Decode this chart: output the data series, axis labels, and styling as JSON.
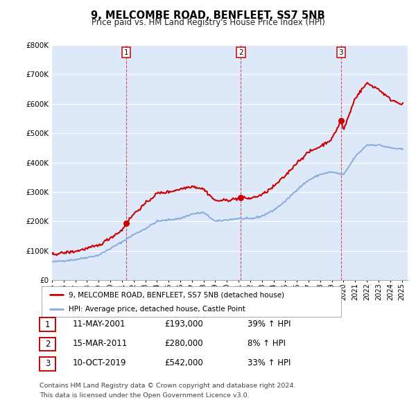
{
  "title": "9, MELCOMBE ROAD, BENFLEET, SS7 5NB",
  "subtitle": "Price paid vs. HM Land Registry's House Price Index (HPI)",
  "red_label": "9, MELCOMBE ROAD, BENFLEET, SS7 5NB (detached house)",
  "blue_label": "HPI: Average price, detached house, Castle Point",
  "footer1": "Contains HM Land Registry data © Crown copyright and database right 2024.",
  "footer2": "This data is licensed under the Open Government Licence v3.0.",
  "transactions": [
    {
      "num": 1,
      "date": "11-MAY-2001",
      "price": "£193,000",
      "change": "39% ↑ HPI",
      "year": 2001.36
    },
    {
      "num": 2,
      "date": "15-MAR-2011",
      "price": "£280,000",
      "change": "8% ↑ HPI",
      "year": 2011.2
    },
    {
      "num": 3,
      "date": "10-OCT-2019",
      "price": "£542,000",
      "change": "33% ↑ HPI",
      "year": 2019.78
    }
  ],
  "transaction_prices": [
    193000,
    280000,
    542000
  ],
  "plot_bg_color": "#dde8f8",
  "red_color": "#cc0000",
  "blue_color": "#88aadd",
  "ylim": [
    0,
    800000
  ],
  "xlim_start": 1995,
  "xlim_end": 2025.5,
  "hpi_breakpoints": [
    1995,
    1997,
    1999,
    2001,
    2002,
    2003,
    2004,
    2005,
    2006,
    2007,
    2008,
    2009,
    2010,
    2011,
    2012,
    2013,
    2014,
    2015,
    2016,
    2017,
    2018,
    2019,
    2020,
    2021,
    2022,
    2023,
    2024,
    2025
  ],
  "hpi_values": [
    62000,
    70000,
    85000,
    130000,
    155000,
    175000,
    200000,
    205000,
    210000,
    225000,
    230000,
    200000,
    205000,
    210000,
    208000,
    218000,
    238000,
    268000,
    308000,
    340000,
    360000,
    368000,
    358000,
    420000,
    460000,
    460000,
    450000,
    445000
  ],
  "red_breakpoints": [
    1995,
    1997,
    1999,
    2001,
    2001.36,
    2002,
    2003,
    2004,
    2005,
    2006,
    2007,
    2008,
    2009,
    2010,
    2011,
    2011.2,
    2012,
    2013,
    2014,
    2015,
    2016,
    2017,
    2018,
    2019,
    2019.78,
    2020,
    2021,
    2022,
    2023,
    2024,
    2025
  ],
  "red_values": [
    88000,
    98000,
    118000,
    170000,
    193000,
    225000,
    260000,
    295000,
    300000,
    310000,
    320000,
    310000,
    270000,
    272000,
    278000,
    280000,
    278000,
    290000,
    318000,
    355000,
    400000,
    435000,
    455000,
    480000,
    542000,
    510000,
    620000,
    670000,
    650000,
    615000,
    600000
  ]
}
